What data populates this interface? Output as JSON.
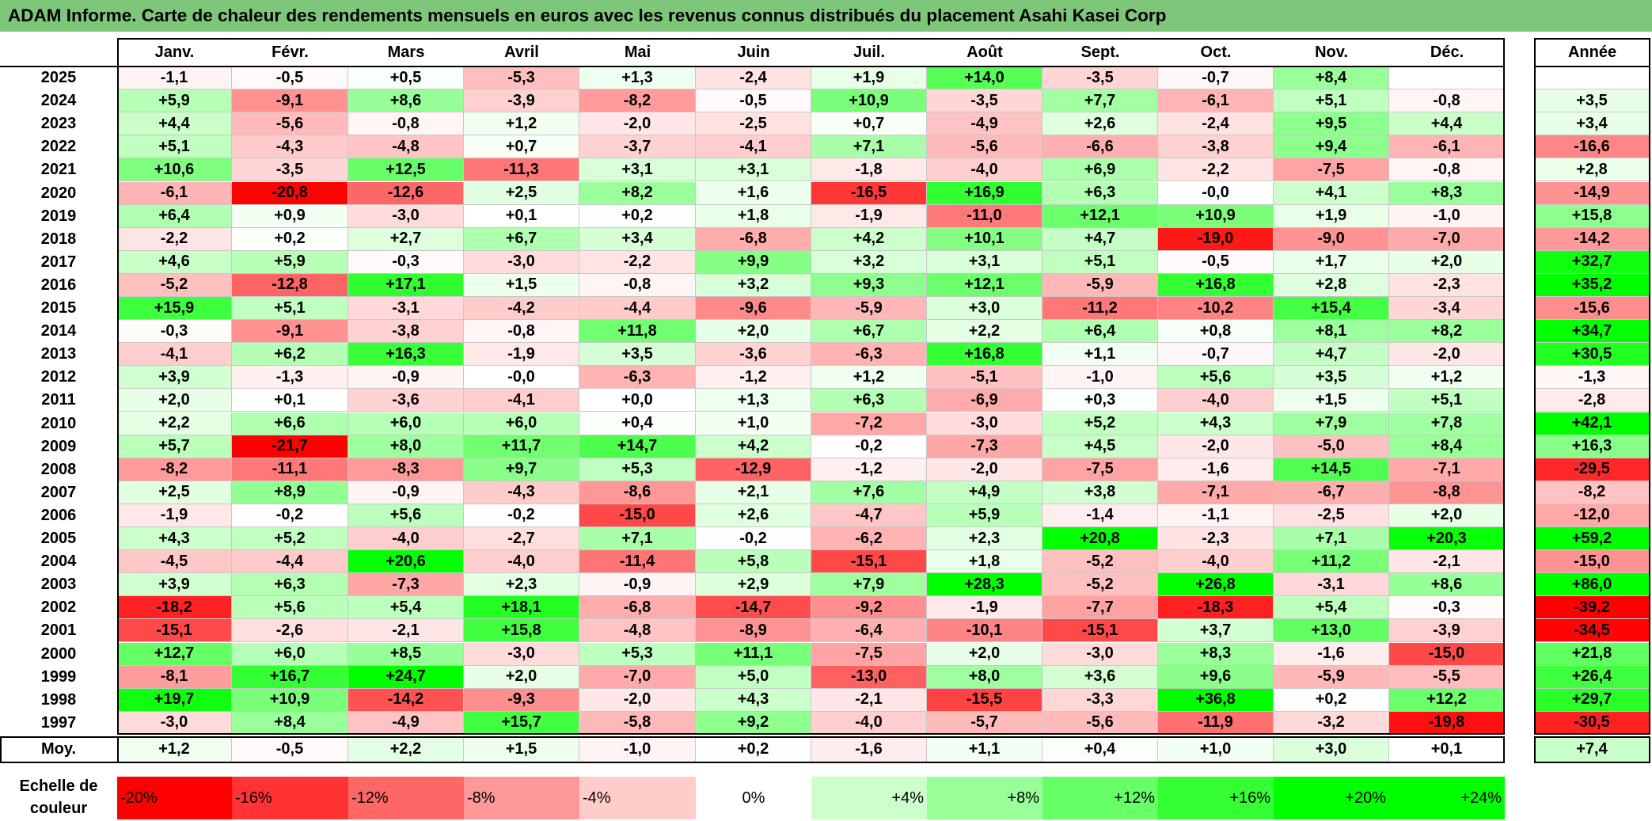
{
  "title": "ADAM Informe. Carte de chaleur des rendements mensuels en euros avec les revenus connus distribués du placement Asahi Kasei Corp",
  "chart_data": {
    "type": "heatmap",
    "title": "ADAM Informe. Carte de chaleur des rendements mensuels en euros avec les revenus connus distribués du placement Asahi Kasei Corp",
    "columns": [
      "Janv.",
      "Févr.",
      "Mars",
      "Avril",
      "Mai",
      "Juin",
      "Juil.",
      "Août",
      "Sept.",
      "Oct.",
      "Nov.",
      "Déc."
    ],
    "year_column": "Année",
    "rows": [
      {
        "year": "2025",
        "values": [
          "-1,1",
          "-0,5",
          "+0,5",
          "-5,3",
          "+1,3",
          "-2,4",
          "+1,9",
          "+14,0",
          "-3,5",
          "-0,7",
          "+8,4",
          ""
        ],
        "annual": ""
      },
      {
        "year": "2024",
        "values": [
          "+5,9",
          "-9,1",
          "+8,6",
          "-3,9",
          "-8,2",
          "-0,5",
          "+10,9",
          "-3,5",
          "+7,7",
          "-6,1",
          "+5,1",
          "-0,8"
        ],
        "annual": "+3,5"
      },
      {
        "year": "2023",
        "values": [
          "+4,4",
          "-5,6",
          "-0,8",
          "+1,2",
          "-2,0",
          "-2,5",
          "+0,7",
          "-4,9",
          "+2,6",
          "-2,4",
          "+9,5",
          "+4,4"
        ],
        "annual": "+3,4"
      },
      {
        "year": "2022",
        "values": [
          "+5,1",
          "-4,3",
          "-4,8",
          "+0,7",
          "-3,7",
          "-4,1",
          "+7,1",
          "-5,6",
          "-6,6",
          "-3,8",
          "+9,4",
          "-6,1"
        ],
        "annual": "-16,6"
      },
      {
        "year": "2021",
        "values": [
          "+10,6",
          "-3,5",
          "+12,5",
          "-11,3",
          "+3,1",
          "+3,1",
          "-1,8",
          "-4,0",
          "+6,9",
          "-2,2",
          "-7,5",
          "-0,8"
        ],
        "annual": "+2,8"
      },
      {
        "year": "2020",
        "values": [
          "-6,1",
          "-20,8",
          "-12,6",
          "+2,5",
          "+8,2",
          "+1,6",
          "-16,5",
          "+16,9",
          "+6,3",
          "-0,0",
          "+4,1",
          "+8,3"
        ],
        "annual": "-14,9"
      },
      {
        "year": "2019",
        "values": [
          "+6,4",
          "+0,9",
          "-3,0",
          "+0,1",
          "+0,2",
          "+1,8",
          "-1,9",
          "-11,0",
          "+12,1",
          "+10,9",
          "+1,9",
          "-1,0"
        ],
        "annual": "+15,8"
      },
      {
        "year": "2018",
        "values": [
          "-2,2",
          "+0,2",
          "+2,7",
          "+6,7",
          "+3,4",
          "-6,8",
          "+4,2",
          "+10,1",
          "+4,7",
          "-19,0",
          "-9,0",
          "-7,0"
        ],
        "annual": "-14,2"
      },
      {
        "year": "2017",
        "values": [
          "+4,6",
          "+5,9",
          "-0,3",
          "-3,0",
          "-2,2",
          "+9,9",
          "+3,2",
          "+3,1",
          "+5,1",
          "-0,5",
          "+1,7",
          "+2,0"
        ],
        "annual": "+32,7"
      },
      {
        "year": "2016",
        "values": [
          "-5,2",
          "-12,8",
          "+17,1",
          "+1,5",
          "-0,8",
          "+3,2",
          "+9,3",
          "+12,1",
          "-5,9",
          "+16,8",
          "+2,8",
          "-2,3"
        ],
        "annual": "+35,2"
      },
      {
        "year": "2015",
        "values": [
          "+15,9",
          "+5,1",
          "-3,1",
          "-4,2",
          "-4,4",
          "-9,6",
          "-5,9",
          "+3,0",
          "-11,2",
          "-10,2",
          "+15,4",
          "-3,4"
        ],
        "annual": "-15,6"
      },
      {
        "year": "2014",
        "values": [
          "-0,3",
          "-9,1",
          "-3,8",
          "-0,8",
          "+11,8",
          "+2,0",
          "+6,7",
          "+2,2",
          "+6,4",
          "+0,8",
          "+8,1",
          "+8,2"
        ],
        "annual": "+34,7"
      },
      {
        "year": "2013",
        "values": [
          "-4,1",
          "+6,2",
          "+16,3",
          "-1,9",
          "+3,5",
          "-3,6",
          "-6,3",
          "+16,8",
          "+1,1",
          "-0,7",
          "+4,7",
          "-2,0"
        ],
        "annual": "+30,5"
      },
      {
        "year": "2012",
        "values": [
          "+3,9",
          "-1,3",
          "-0,9",
          "-0,0",
          "-6,3",
          "-1,2",
          "+1,2",
          "-5,1",
          "-1,0",
          "+5,6",
          "+3,5",
          "+1,2"
        ],
        "annual": "-1,3"
      },
      {
        "year": "2011",
        "values": [
          "+2,0",
          "+0,1",
          "-3,6",
          "-4,1",
          "+0,0",
          "+1,3",
          "+6,3",
          "-6,9",
          "+0,3",
          "-4,0",
          "+1,5",
          "+5,1"
        ],
        "annual": "-2,8"
      },
      {
        "year": "2010",
        "values": [
          "+2,2",
          "+6,6",
          "+6,0",
          "+6,0",
          "+0,4",
          "+1,0",
          "-7,2",
          "-3,0",
          "+5,2",
          "+4,3",
          "+7,9",
          "+7,8"
        ],
        "annual": "+42,1"
      },
      {
        "year": "2009",
        "values": [
          "+5,7",
          "-21,7",
          "+8,0",
          "+11,7",
          "+14,7",
          "+4,2",
          "-0,2",
          "-7,3",
          "+4,5",
          "-2,0",
          "-5,0",
          "+8,4"
        ],
        "annual": "+16,3"
      },
      {
        "year": "2008",
        "values": [
          "-8,2",
          "-11,1",
          "-8,3",
          "+9,7",
          "+5,3",
          "-12,9",
          "-1,2",
          "-2,0",
          "-7,5",
          "-1,6",
          "+14,5",
          "-7,1"
        ],
        "annual": "-29,5"
      },
      {
        "year": "2007",
        "values": [
          "+2,5",
          "+8,9",
          "-0,9",
          "-4,3",
          "-8,6",
          "+2,1",
          "+7,6",
          "+4,9",
          "+3,8",
          "-7,1",
          "-6,7",
          "-8,8"
        ],
        "annual": "-8,2"
      },
      {
        "year": "2006",
        "values": [
          "-1,9",
          "-0,2",
          "+5,6",
          "-0,2",
          "-15,0",
          "+2,6",
          "-4,7",
          "+5,9",
          "-1,4",
          "-1,1",
          "-2,5",
          "+2,0"
        ],
        "annual": "-12,0"
      },
      {
        "year": "2005",
        "values": [
          "+4,3",
          "+5,2",
          "-4,0",
          "-2,7",
          "+7,1",
          "-0,2",
          "-6,2",
          "+2,3",
          "+20,8",
          "-2,3",
          "+7,1",
          "+20,3"
        ],
        "annual": "+59,2"
      },
      {
        "year": "2004",
        "values": [
          "-4,5",
          "-4,4",
          "+20,6",
          "-4,0",
          "-11,4",
          "+5,8",
          "-15,1",
          "+1,8",
          "-5,2",
          "-4,0",
          "+11,2",
          "-2,1"
        ],
        "annual": "-15,0"
      },
      {
        "year": "2003",
        "values": [
          "+3,9",
          "+6,3",
          "-7,3",
          "+2,3",
          "-0,9",
          "+2,9",
          "+7,9",
          "+28,3",
          "-5,2",
          "+26,8",
          "-3,1",
          "+8,6"
        ],
        "annual": "+86,0"
      },
      {
        "year": "2002",
        "values": [
          "-18,2",
          "+5,6",
          "+5,4",
          "+18,1",
          "-6,8",
          "-14,7",
          "-9,2",
          "-1,9",
          "-7,7",
          "-18,3",
          "+5,4",
          "-0,3"
        ],
        "annual": "-39,2"
      },
      {
        "year": "2001",
        "values": [
          "-15,1",
          "-2,6",
          "-2,1",
          "+15,8",
          "-4,8",
          "-8,9",
          "-6,4",
          "-10,1",
          "-15,1",
          "+3,7",
          "+13,0",
          "-3,9"
        ],
        "annual": "-34,5"
      },
      {
        "year": "2000",
        "values": [
          "+12,7",
          "+6,0",
          "+8,5",
          "-3,0",
          "+5,3",
          "+11,1",
          "-7,5",
          "+2,0",
          "-3,0",
          "+8,3",
          "-1,6",
          "-15,0"
        ],
        "annual": "+21,8"
      },
      {
        "year": "1999",
        "values": [
          "-8,1",
          "+16,7",
          "+24,7",
          "+2,0",
          "-7,0",
          "+5,0",
          "-13,0",
          "+8,0",
          "+3,6",
          "+9,6",
          "-5,9",
          "-5,5"
        ],
        "annual": "+26,4"
      },
      {
        "year": "1998",
        "values": [
          "+19,7",
          "+10,9",
          "-14,2",
          "-9,3",
          "-2,0",
          "+4,3",
          "-2,1",
          "-15,5",
          "-3,3",
          "+36,8",
          "+0,2",
          "+12,2"
        ],
        "annual": "+29,7"
      },
      {
        "year": "1997",
        "values": [
          "-3,0",
          "+8,4",
          "-4,9",
          "+15,7",
          "-5,8",
          "+9,2",
          "-4,0",
          "-5,7",
          "-5,6",
          "-11,9",
          "-3,2",
          "-19,8"
        ],
        "annual": "-30,5"
      }
    ],
    "average": {
      "label": "Moy.",
      "values": [
        "+1,2",
        "-0,5",
        "+2,2",
        "+1,5",
        "-1,0",
        "+0,2",
        "-1,6",
        "+1,1",
        "+0,4",
        "+1,0",
        "+3,0",
        "+0,1"
      ],
      "annual": "+7,4"
    },
    "color_scale": {
      "label_line1": "Echelle de",
      "label_line2": "couleur",
      "stops": [
        "-20%",
        "-16%",
        "-12%",
        "-8%",
        "-4%",
        "0%",
        "+4%",
        "+8%",
        "+12%",
        "+16%",
        "+20%",
        "+24%"
      ],
      "stop_values": [
        -20,
        -16,
        -12,
        -8,
        -4,
        0,
        4,
        8,
        12,
        16,
        20,
        24
      ]
    },
    "colors": {
      "negative_max": "#ff0000",
      "neutral": "#ffffff",
      "positive_max": "#00ff00",
      "title_bar": "#7dc67a"
    }
  }
}
